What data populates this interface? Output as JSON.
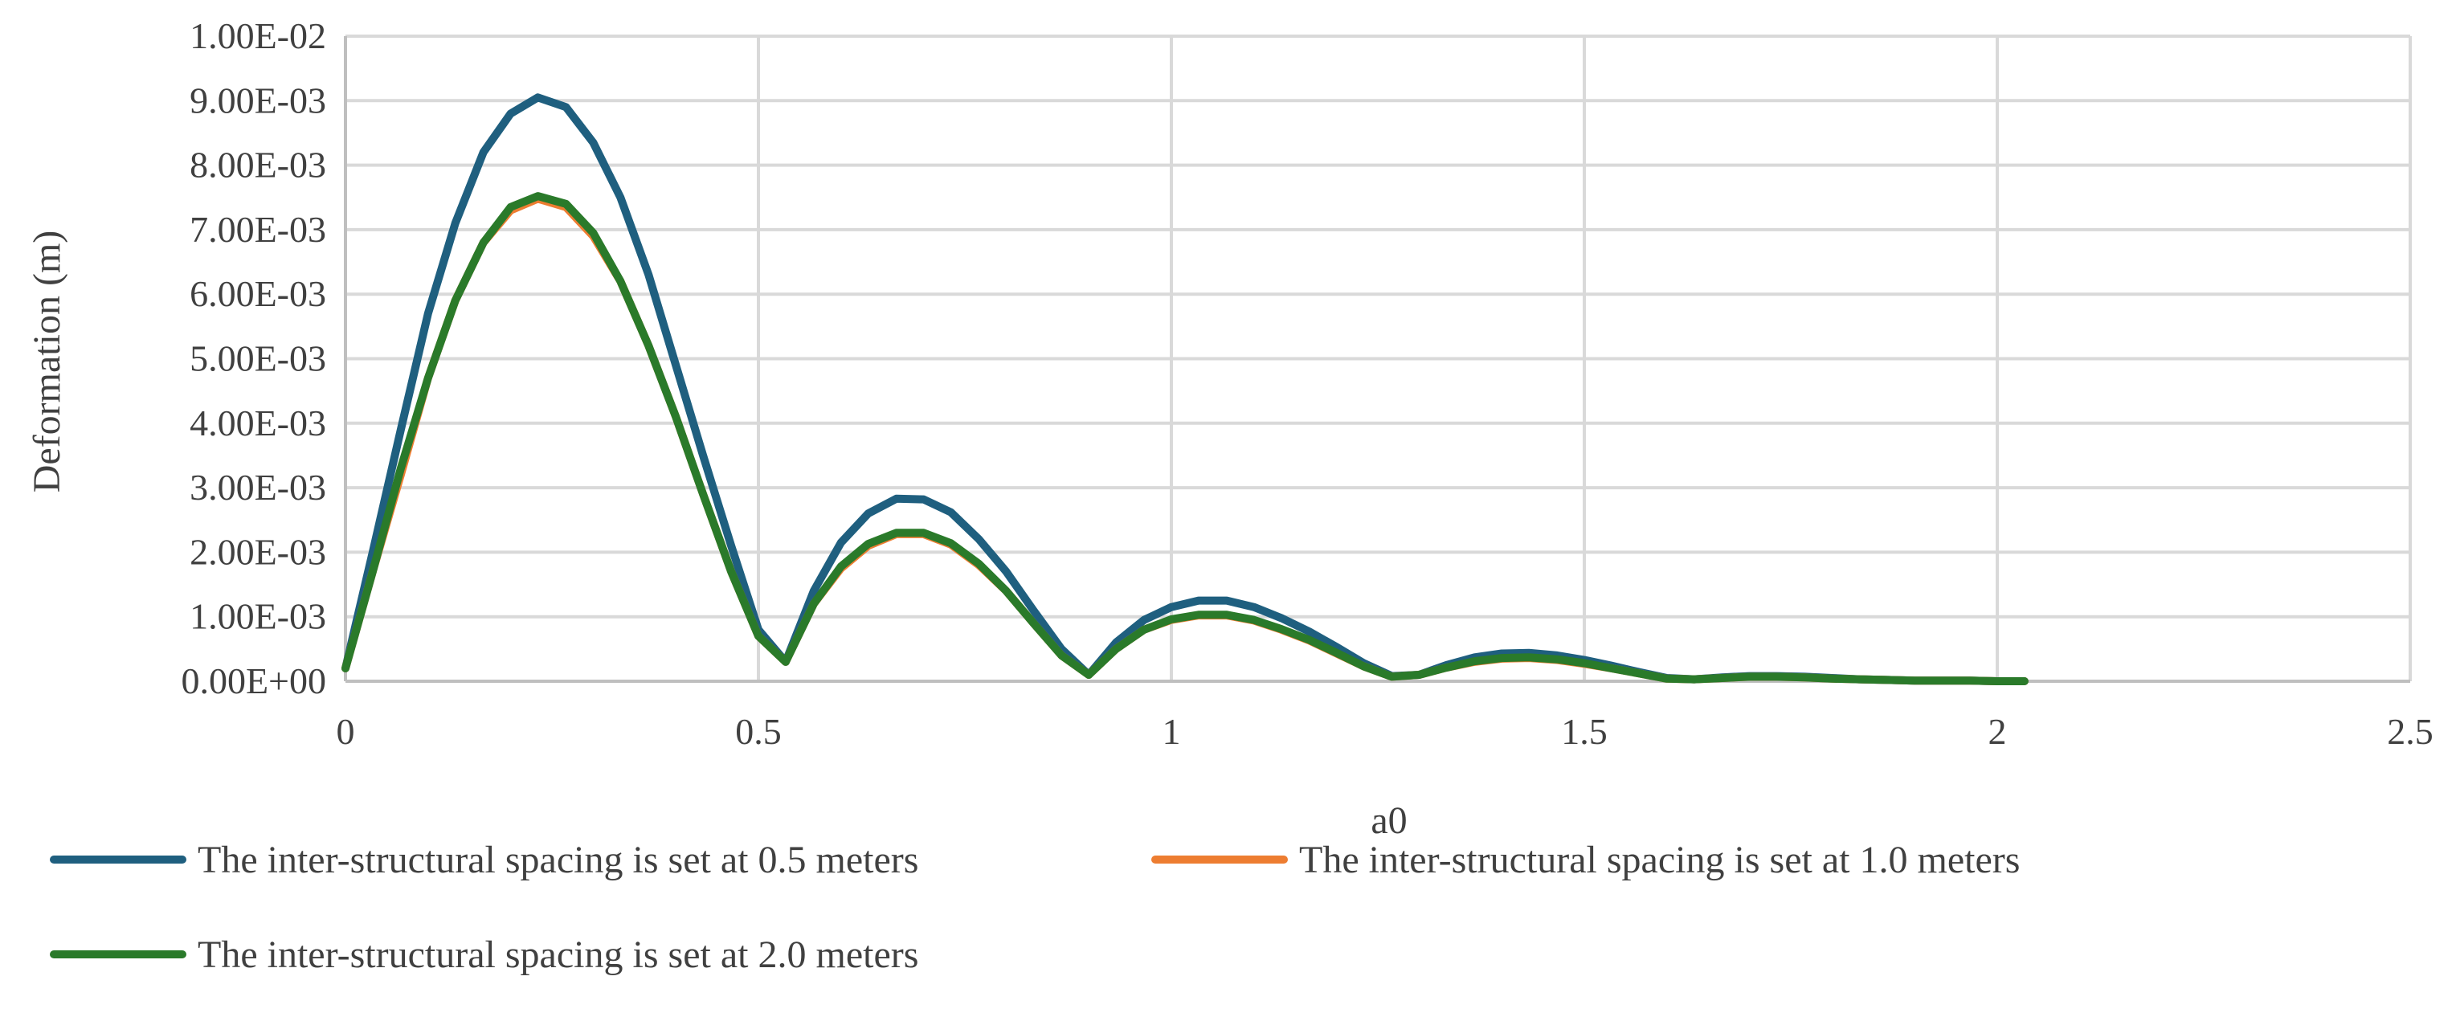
{
  "chart_data": {
    "type": "line",
    "xlabel": "a0",
    "ylabel": "Deformation (m)",
    "xlim": [
      0,
      2.5
    ],
    "ylim": [
      0,
      0.01
    ],
    "x_ticks": [
      "0",
      "0.5",
      "1",
      "1.5",
      "2",
      "2.5"
    ],
    "y_ticks": [
      "0.00E+00",
      "1.00E-03",
      "2.00E-03",
      "3.00E-03",
      "4.00E-03",
      "5.00E-03",
      "6.00E-03",
      "7.00E-03",
      "8.00E-03",
      "9.00E-03",
      "1.00E-02"
    ],
    "grid": true,
    "legend_position": "bottom",
    "series": [
      {
        "name": "The inter-structural spacing is set at 0.5 meters",
        "color": "#1f5f7f",
        "x": [
          0,
          0.033,
          0.067,
          0.1,
          0.133,
          0.167,
          0.2,
          0.233,
          0.267,
          0.3,
          0.333,
          0.367,
          0.4,
          0.433,
          0.467,
          0.5,
          0.533,
          0.567,
          0.6,
          0.633,
          0.667,
          0.7,
          0.733,
          0.767,
          0.8,
          0.833,
          0.867,
          0.9,
          0.933,
          0.967,
          1.0,
          1.033,
          1.067,
          1.1,
          1.133,
          1.167,
          1.2,
          1.233,
          1.267,
          1.3,
          1.333,
          1.367,
          1.4,
          1.433,
          1.467,
          1.5,
          1.533,
          1.567,
          1.6,
          1.633,
          1.667,
          1.7,
          1.733,
          1.767,
          1.8,
          1.833,
          1.867,
          1.9,
          1.933,
          1.967,
          2.0,
          2.033
        ],
        "values": [
          0.0002,
          0.002,
          0.0039,
          0.0057,
          0.0071,
          0.0082,
          0.0088,
          0.00905,
          0.0089,
          0.00835,
          0.0075,
          0.0063,
          0.0049,
          0.0035,
          0.0021,
          0.0008,
          0.0003,
          0.0014,
          0.00215,
          0.0026,
          0.00283,
          0.00282,
          0.00262,
          0.0022,
          0.0017,
          0.0011,
          0.0005,
          0.0001,
          0.0006,
          0.00095,
          0.00115,
          0.00125,
          0.00125,
          0.00115,
          0.00098,
          0.00077,
          0.00053,
          0.00028,
          8e-05,
          0.0001,
          0.00025,
          0.00037,
          0.00043,
          0.00044,
          0.0004,
          0.00033,
          0.00024,
          0.00014,
          5e-05,
          3e-05,
          6e-05,
          8e-05,
          8e-05,
          7e-05,
          5e-05,
          3e-05,
          2e-05,
          1e-05,
          1e-05,
          1e-05,
          0.0,
          0.0
        ]
      },
      {
        "name": "The inter-structural spacing is set at 1.0 meters",
        "color": "#ed7d31",
        "x": [
          0,
          0.033,
          0.067,
          0.1,
          0.133,
          0.167,
          0.2,
          0.233,
          0.267,
          0.3,
          0.333,
          0.367,
          0.4,
          0.433,
          0.467,
          0.5,
          0.533,
          0.567,
          0.6,
          0.633,
          0.667,
          0.7,
          0.733,
          0.767,
          0.8,
          0.833,
          0.867,
          0.9,
          0.933,
          0.967,
          1.0,
          1.033,
          1.067,
          1.1,
          1.133,
          1.167,
          1.2,
          1.233,
          1.267,
          1.3,
          1.333,
          1.367,
          1.4,
          1.433,
          1.467,
          1.5,
          1.533,
          1.567,
          1.6,
          1.633,
          1.667,
          1.7,
          1.733,
          1.767,
          1.8,
          1.833,
          1.867,
          1.9,
          1.933,
          1.967,
          2.0,
          2.033
        ],
        "values": [
          0.0002,
          0.0017,
          0.0032,
          0.0047,
          0.0059,
          0.0068,
          0.0073,
          0.00748,
          0.00735,
          0.0069,
          0.0062,
          0.0052,
          0.0041,
          0.0029,
          0.0017,
          0.0007,
          0.0003,
          0.0012,
          0.00175,
          0.0021,
          0.00228,
          0.00228,
          0.00212,
          0.0018,
          0.0014,
          0.0009,
          0.0004,
          0.0001,
          0.0005,
          0.0008,
          0.00095,
          0.00102,
          0.00102,
          0.00094,
          0.0008,
          0.00063,
          0.00043,
          0.00023,
          7e-05,
          0.0001,
          0.00021,
          0.0003,
          0.00035,
          0.00036,
          0.00033,
          0.00027,
          0.0002,
          0.00012,
          4e-05,
          3e-05,
          5e-05,
          7e-05,
          7e-05,
          6e-05,
          4e-05,
          3e-05,
          2e-05,
          1e-05,
          1e-05,
          1e-05,
          0.0,
          0.0
        ]
      },
      {
        "name": "The inter-structural spacing is set at 2.0 meters",
        "color": "#2a7a2a",
        "x": [
          0,
          0.033,
          0.067,
          0.1,
          0.133,
          0.167,
          0.2,
          0.233,
          0.267,
          0.3,
          0.333,
          0.367,
          0.4,
          0.433,
          0.467,
          0.5,
          0.533,
          0.567,
          0.6,
          0.633,
          0.667,
          0.7,
          0.733,
          0.767,
          0.8,
          0.833,
          0.867,
          0.9,
          0.933,
          0.967,
          1.0,
          1.033,
          1.067,
          1.1,
          1.133,
          1.167,
          1.2,
          1.233,
          1.267,
          1.3,
          1.333,
          1.367,
          1.4,
          1.433,
          1.467,
          1.5,
          1.533,
          1.567,
          1.6,
          1.633,
          1.667,
          1.7,
          1.733,
          1.767,
          1.8,
          1.833,
          1.867,
          1.9,
          1.933,
          1.967,
          2.0,
          2.033
        ],
        "values": [
          0.0002,
          0.0017,
          0.0033,
          0.0047,
          0.0059,
          0.0068,
          0.00735,
          0.00752,
          0.0074,
          0.00695,
          0.0062,
          0.0052,
          0.0041,
          0.0029,
          0.0017,
          0.0007,
          0.0003,
          0.0012,
          0.00178,
          0.00213,
          0.0023,
          0.0023,
          0.00214,
          0.00182,
          0.0014,
          0.0009,
          0.0004,
          0.0001,
          0.0005,
          0.0008,
          0.00096,
          0.00103,
          0.00103,
          0.00095,
          0.00081,
          0.00064,
          0.00044,
          0.00023,
          7e-05,
          0.0001,
          0.00021,
          0.00031,
          0.00036,
          0.00037,
          0.00034,
          0.00028,
          0.0002,
          0.00012,
          4e-05,
          3e-05,
          5e-05,
          7e-05,
          7e-05,
          6e-05,
          4e-05,
          3e-05,
          2e-05,
          1e-05,
          1e-05,
          1e-05,
          0.0,
          0.0
        ]
      }
    ]
  }
}
